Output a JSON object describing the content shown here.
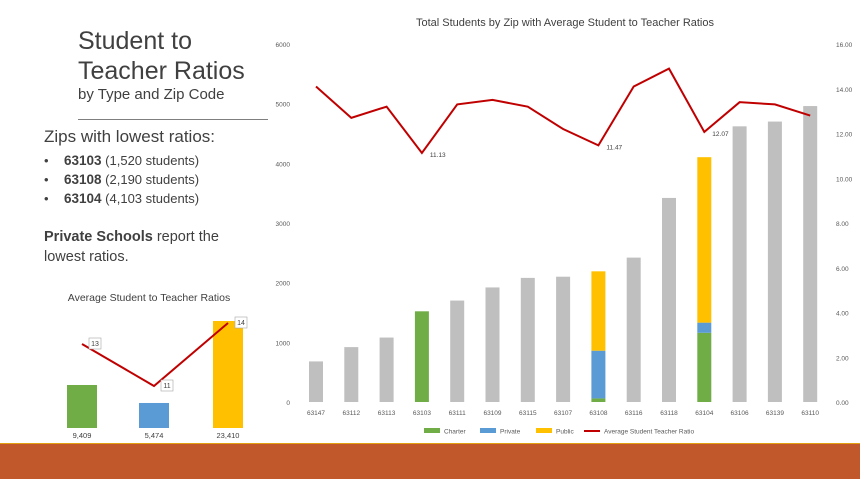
{
  "slide": {
    "title_line1": "Student to",
    "title_line2": "Teacher Ratios",
    "subtitle": "by Type and Zip Code",
    "zips_heading": "Zips with lowest ratios:",
    "zips": [
      {
        "zip": "63103",
        "detail": "(1,520 students)"
      },
      {
        "zip": "63108",
        "detail": "(2,190 students)"
      },
      {
        "zip": "63104",
        "detail": "(4,103 students)"
      }
    ],
    "bullet": "•",
    "private_bold": "Private Schools",
    "private_rest": " report the lowest ratios."
  },
  "colors": {
    "charter": "#70ad47",
    "private": "#5b9bd5",
    "public": "#ffc000",
    "total": "#bfbfbf",
    "ratio_line": "#c00000",
    "footer": "#c0582b",
    "footer_accent": "#e3a112"
  },
  "chart_data": [
    {
      "type": "bar",
      "title": "Average Student to Teacher Ratios",
      "categories": [
        "Charter",
        "Private",
        "Public"
      ],
      "series": [
        {
          "values": [
            9409,
            5474,
            23410
          ]
        },
        {
          "values": [
            13,
            11,
            14
          ]
        }
      ],
      "bar_labels": [
        "9,409",
        "5,474",
        "23,410"
      ],
      "ratio_labels": [
        "13",
        "11",
        "14"
      ]
    },
    {
      "type": "bar",
      "title": "Total Students by Zip with Average Student to Teacher Ratios",
      "categories": [
        "63147",
        "63112",
        "63113",
        "63103",
        "63111",
        "63109",
        "63115",
        "63107",
        "63108",
        "63116",
        "63118",
        "63104",
        "63106",
        "63139",
        "63110"
      ],
      "series": [
        {
          "name": "Charter",
          "values": [
            0,
            0,
            0,
            1520,
            0,
            0,
            0,
            0,
            60,
            0,
            0,
            1160,
            0,
            0,
            0
          ]
        },
        {
          "name": "Private",
          "values": [
            0,
            0,
            0,
            0,
            0,
            0,
            0,
            0,
            800,
            0,
            0,
            170,
            0,
            0,
            0
          ]
        },
        {
          "name": "Public",
          "values": [
            0,
            0,
            0,
            0,
            0,
            0,
            0,
            0,
            1330,
            0,
            0,
            2773,
            0,
            0,
            0
          ]
        },
        {
          "name": "Average Student Teacher Ratio",
          "values": [
            14.1,
            12.7,
            13.2,
            11.13,
            13.3,
            13.5,
            13.2,
            12.2,
            11.47,
            14.1,
            14.9,
            12.07,
            13.4,
            13.3,
            12.8
          ]
        }
      ],
      "totals": [
        680,
        920,
        1080,
        1520,
        1700,
        1920,
        2080,
        2100,
        2190,
        2420,
        3420,
        4103,
        4620,
        4700,
        4960
      ],
      "annotations": [
        "11.13",
        "11.47",
        "12.07"
      ],
      "y_left_ticks": [
        "0",
        "1000",
        "2000",
        "3000",
        "4000",
        "5000",
        "6000"
      ],
      "y_right_ticks": [
        "0.00",
        "2.00",
        "4.00",
        "6.00",
        "8.00",
        "10.00",
        "12.00",
        "14.00",
        "16.00"
      ],
      "ylim": [
        0,
        6000
      ],
      "y2lim": [
        0,
        16
      ],
      "legend": "bottom"
    }
  ]
}
